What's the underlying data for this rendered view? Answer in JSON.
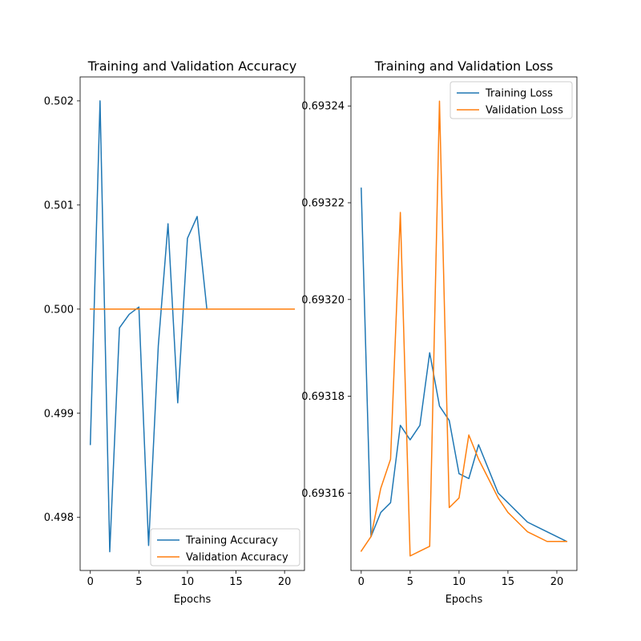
{
  "chart_data": [
    {
      "type": "line",
      "title": "Training and Validation Accuracy",
      "xlabel": "Epochs",
      "ylabel": "",
      "xlim": [
        -1.05,
        22.05
      ],
      "ylim": [
        0.49749,
        0.50223
      ],
      "xticks": [
        0,
        5,
        10,
        15,
        20
      ],
      "xtick_labels": [
        "0",
        "5",
        "10",
        "15",
        "20"
      ],
      "yticks": [
        0.498,
        0.499,
        0.5,
        0.501,
        0.502
      ],
      "ytick_labels": [
        "0.498",
        "0.499",
        "0.500",
        "0.501",
        "0.502"
      ],
      "grid": false,
      "legend_position": "lower-right",
      "series": [
        {
          "name": "Training Accuracy",
          "color": "#1f77b4",
          "x": [
            0,
            1,
            2,
            3,
            4,
            5,
            6,
            7,
            8,
            9,
            10,
            11,
            12
          ],
          "y": [
            0.4987,
            0.502,
            0.49767,
            0.49982,
            0.49995,
            0.50002,
            0.49773,
            0.49965,
            0.50082,
            0.4991,
            0.50068,
            0.50089,
            0.5
          ]
        },
        {
          "name": "Validation Accuracy",
          "color": "#ff7f0e",
          "x": [
            0,
            1,
            2,
            3,
            4,
            5,
            6,
            7,
            8,
            9,
            10,
            11,
            12,
            13,
            14,
            15,
            16,
            17,
            18,
            19,
            20,
            21
          ],
          "y": [
            0.5,
            0.5,
            0.5,
            0.5,
            0.5,
            0.5,
            0.5,
            0.5,
            0.5,
            0.5,
            0.5,
            0.5,
            0.5,
            0.5,
            0.5,
            0.5,
            0.5,
            0.5,
            0.5,
            0.5,
            0.5,
            0.5
          ]
        }
      ]
    },
    {
      "type": "line",
      "title": "Training and Validation Loss",
      "xlabel": "Epochs",
      "ylabel": "",
      "xlim": [
        -1.05,
        22.05
      ],
      "ylim": [
        0.693144,
        0.693246
      ],
      "xticks": [
        0,
        5,
        10,
        15,
        20
      ],
      "xtick_labels": [
        "0",
        "5",
        "10",
        "15",
        "20"
      ],
      "yticks": [
        0.69316,
        0.69318,
        0.6932,
        0.69322,
        0.69324
      ],
      "ytick_labels": [
        "0.69316",
        "0.69318",
        "0.69320",
        "0.69322",
        "0.69324"
      ],
      "grid": false,
      "legend_position": "upper-right",
      "series": [
        {
          "name": "Training Loss",
          "color": "#1f77b4",
          "x": [
            0,
            1,
            2,
            3,
            4,
            5,
            6,
            7,
            8,
            9,
            10,
            11,
            12,
            13,
            14,
            15,
            16,
            17,
            18,
            19,
            20,
            21
          ],
          "y": [
            0.693223,
            0.693151,
            0.693156,
            0.693158,
            0.693174,
            0.693171,
            0.693174,
            0.693189,
            0.693178,
            0.693175,
            0.693164,
            0.693163,
            0.69317,
            0.693165,
            0.69316,
            0.693158,
            0.693156,
            0.693154,
            0.693153,
            0.693152,
            0.693151,
            0.69315
          ]
        },
        {
          "name": "Validation Loss",
          "color": "#ff7f0e",
          "x": [
            0,
            1,
            2,
            3,
            4,
            5,
            6,
            7,
            8,
            9,
            10,
            11,
            12,
            13,
            14,
            15,
            16,
            17,
            18,
            19,
            20,
            21
          ],
          "y": [
            0.693148,
            0.693151,
            0.693161,
            0.693167,
            0.693218,
            0.693147,
            0.693148,
            0.693149,
            0.693241,
            0.693157,
            0.693159,
            0.693172,
            0.693167,
            0.693163,
            0.693159,
            0.693156,
            0.693154,
            0.693152,
            0.693151,
            0.69315,
            0.69315,
            0.69315
          ]
        }
      ]
    }
  ]
}
